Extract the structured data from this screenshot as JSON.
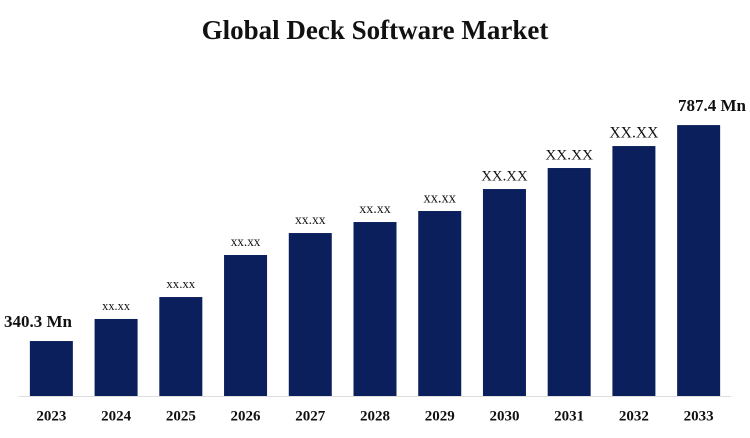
{
  "chart_data": {
    "type": "bar",
    "title": "Global Deck Software Market",
    "categories": [
      "2023",
      "2024",
      "2025",
      "2026",
      "2027",
      "2028",
      "2029",
      "2030",
      "2031",
      "2032",
      "2033"
    ],
    "values": [
      340.3,
      386,
      431.4,
      518.4,
      563.9,
      586.7,
      609.5,
      655,
      698.5,
      744,
      787.4
    ],
    "value_labels": [
      "340.3 Mn",
      "xx.xx",
      "xx.xx",
      "xx.xx",
      "xx.xx",
      "xx.xx",
      "xx.xx",
      "XX.XX",
      "XX.XX",
      "XX.XX",
      "787.4 Mn"
    ],
    "color": "#0a1f5c",
    "ylim": [
      226.5,
      800
    ]
  }
}
